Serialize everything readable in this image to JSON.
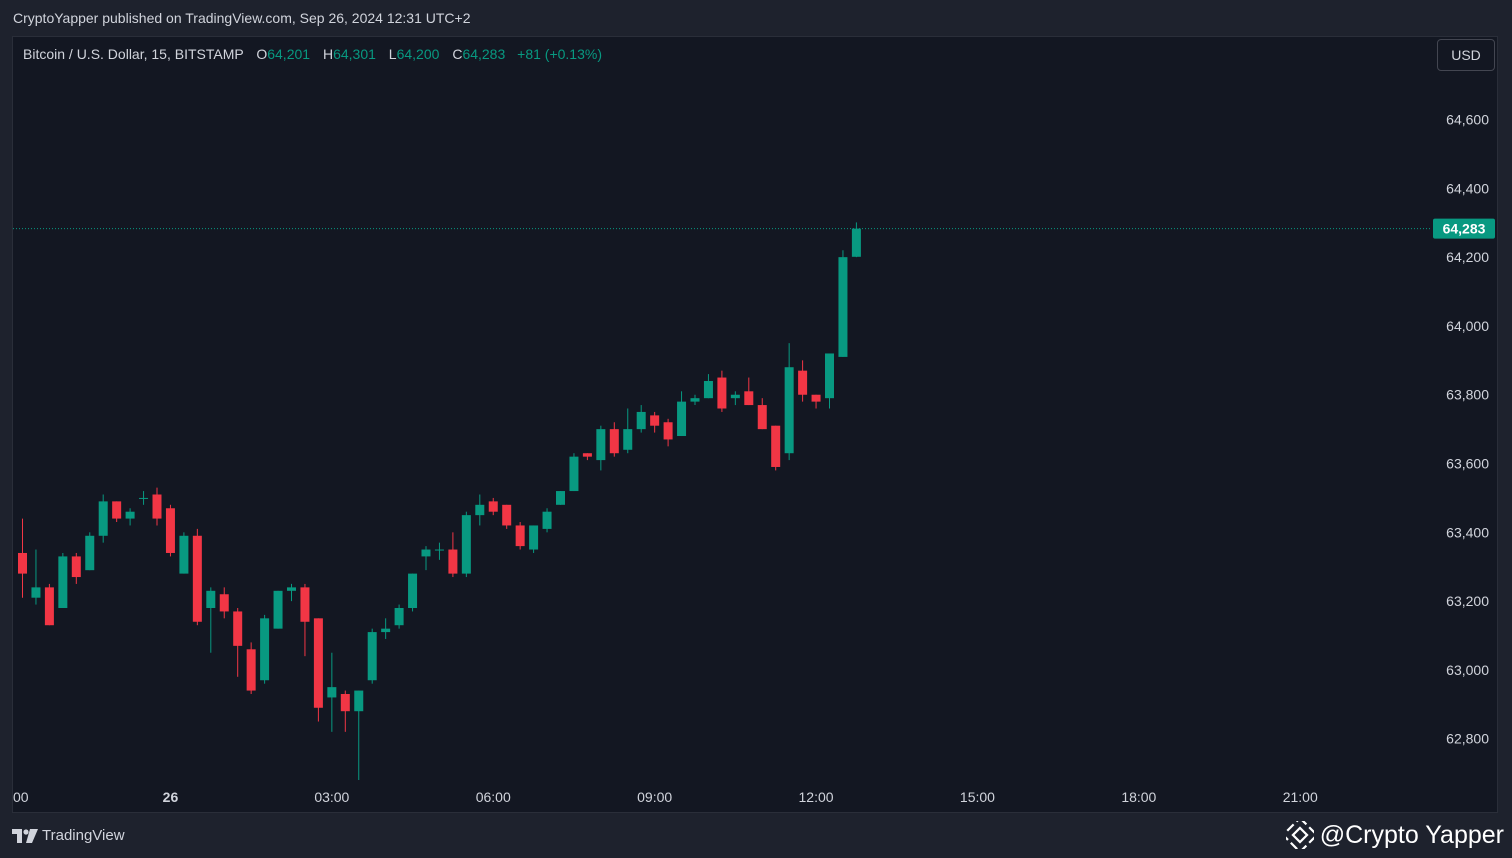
{
  "header": {
    "published_by": "CryptoYapper published on TradingView.com, Sep 26, 2024 12:31 UTC+2"
  },
  "legend": {
    "symbol": "Bitcoin / U.S. Dollar, 15, BITSTAMP",
    "o_label": "O",
    "o_value": "64,201",
    "h_label": "H",
    "h_value": "64,301",
    "l_label": "L",
    "l_value": "64,200",
    "c_label": "C",
    "c_value": "64,283",
    "change": "+81 (+0.13%)"
  },
  "toolbar": {
    "currency_label": "USD"
  },
  "footer": {
    "brand": "TradingView"
  },
  "watermark": {
    "text": "@Crypto Yapper"
  },
  "colors": {
    "up": "#089981",
    "down": "#f23645",
    "background": "#131722",
    "text": "#d1d4dc"
  },
  "chart_data": {
    "type": "candlestick",
    "interval": "15",
    "ylim": [
      62680,
      64840
    ],
    "last_price": 64283,
    "last_price_label": "64,283",
    "y_ticks": [
      {
        "value": 64600,
        "label": "64,600"
      },
      {
        "value": 64400,
        "label": "64,400"
      },
      {
        "value": 64200,
        "label": "64,200"
      },
      {
        "value": 64000,
        "label": "64,000"
      },
      {
        "value": 63800,
        "label": "63,800"
      },
      {
        "value": 63600,
        "label": "63,600"
      },
      {
        "value": 63400,
        "label": "63,400"
      },
      {
        "value": 63200,
        "label": "63,200"
      },
      {
        "value": 63000,
        "label": "63,000"
      },
      {
        "value": 62800,
        "label": "62,800"
      }
    ],
    "x_ticks": [
      {
        "index": -1,
        "label": "00"
      },
      {
        "index": 11,
        "label": "26"
      },
      {
        "index": 23,
        "label": "03:00"
      },
      {
        "index": 35,
        "label": "06:00"
      },
      {
        "index": 47,
        "label": "09:00"
      },
      {
        "index": 59,
        "label": "12:00"
      },
      {
        "index": 71,
        "label": "15:00"
      },
      {
        "index": 83,
        "label": "18:00"
      },
      {
        "index": 95,
        "label": "21:00"
      }
    ],
    "candles": [
      {
        "o": 63340,
        "h": 63440,
        "l": 63210,
        "c": 63280
      },
      {
        "o": 63210,
        "h": 63350,
        "l": 63190,
        "c": 63240
      },
      {
        "o": 63240,
        "h": 63250,
        "l": 63130,
        "c": 63130
      },
      {
        "o": 63180,
        "h": 63340,
        "l": 63180,
        "c": 63330
      },
      {
        "o": 63330,
        "h": 63340,
        "l": 63250,
        "c": 63270
      },
      {
        "o": 63290,
        "h": 63400,
        "l": 63290,
        "c": 63390
      },
      {
        "o": 63390,
        "h": 63510,
        "l": 63370,
        "c": 63490
      },
      {
        "o": 63490,
        "h": 63490,
        "l": 63430,
        "c": 63440
      },
      {
        "o": 63440,
        "h": 63470,
        "l": 63420,
        "c": 63460
      },
      {
        "o": 63500,
        "h": 63520,
        "l": 63480,
        "c": 63500
      },
      {
        "o": 63510,
        "h": 63530,
        "l": 63420,
        "c": 63440
      },
      {
        "o": 63470,
        "h": 63480,
        "l": 63330,
        "c": 63340
      },
      {
        "o": 63280,
        "h": 63400,
        "l": 63280,
        "c": 63390
      },
      {
        "o": 63390,
        "h": 63410,
        "l": 63130,
        "c": 63140
      },
      {
        "o": 63180,
        "h": 63240,
        "l": 63050,
        "c": 63230
      },
      {
        "o": 63220,
        "h": 63240,
        "l": 63150,
        "c": 63170
      },
      {
        "o": 63170,
        "h": 63180,
        "l": 62980,
        "c": 63070
      },
      {
        "o": 63060,
        "h": 63080,
        "l": 62930,
        "c": 62940
      },
      {
        "o": 62970,
        "h": 63160,
        "l": 62960,
        "c": 63150
      },
      {
        "o": 63120,
        "h": 63230,
        "l": 63120,
        "c": 63230
      },
      {
        "o": 63230,
        "h": 63250,
        "l": 63200,
        "c": 63240
      },
      {
        "o": 63240,
        "h": 63250,
        "l": 63040,
        "c": 63140
      },
      {
        "o": 63150,
        "h": 63150,
        "l": 62850,
        "c": 62890
      },
      {
        "o": 62920,
        "h": 63050,
        "l": 62820,
        "c": 62950
      },
      {
        "o": 62930,
        "h": 62940,
        "l": 62820,
        "c": 62880
      },
      {
        "o": 62880,
        "h": 62940,
        "l": 62680,
        "c": 62940
      },
      {
        "o": 62970,
        "h": 63120,
        "l": 62960,
        "c": 63110
      },
      {
        "o": 63110,
        "h": 63150,
        "l": 63090,
        "c": 63120
      },
      {
        "o": 63130,
        "h": 63190,
        "l": 63120,
        "c": 63180
      },
      {
        "o": 63180,
        "h": 63280,
        "l": 63170,
        "c": 63280
      },
      {
        "o": 63330,
        "h": 63360,
        "l": 63290,
        "c": 63350
      },
      {
        "o": 63350,
        "h": 63370,
        "l": 63320,
        "c": 63350
      },
      {
        "o": 63350,
        "h": 63400,
        "l": 63270,
        "c": 63280
      },
      {
        "o": 63280,
        "h": 63460,
        "l": 63270,
        "c": 63450
      },
      {
        "o": 63450,
        "h": 63510,
        "l": 63420,
        "c": 63480
      },
      {
        "o": 63490,
        "h": 63500,
        "l": 63450,
        "c": 63460
      },
      {
        "o": 63480,
        "h": 63480,
        "l": 63410,
        "c": 63420
      },
      {
        "o": 63420,
        "h": 63430,
        "l": 63350,
        "c": 63360
      },
      {
        "o": 63350,
        "h": 63420,
        "l": 63340,
        "c": 63420
      },
      {
        "o": 63410,
        "h": 63470,
        "l": 63400,
        "c": 63460
      },
      {
        "o": 63480,
        "h": 63520,
        "l": 63480,
        "c": 63520
      },
      {
        "o": 63520,
        "h": 63630,
        "l": 63520,
        "c": 63620
      },
      {
        "o": 63630,
        "h": 63630,
        "l": 63610,
        "c": 63620
      },
      {
        "o": 63610,
        "h": 63710,
        "l": 63580,
        "c": 63700
      },
      {
        "o": 63700,
        "h": 63720,
        "l": 63620,
        "c": 63630
      },
      {
        "o": 63640,
        "h": 63760,
        "l": 63630,
        "c": 63700
      },
      {
        "o": 63700,
        "h": 63770,
        "l": 63690,
        "c": 63750
      },
      {
        "o": 63740,
        "h": 63750,
        "l": 63690,
        "c": 63710
      },
      {
        "o": 63720,
        "h": 63730,
        "l": 63650,
        "c": 63670
      },
      {
        "o": 63680,
        "h": 63810,
        "l": 63680,
        "c": 63780
      },
      {
        "o": 63780,
        "h": 63800,
        "l": 63770,
        "c": 63790
      },
      {
        "o": 63790,
        "h": 63860,
        "l": 63790,
        "c": 63840
      },
      {
        "o": 63850,
        "h": 63870,
        "l": 63750,
        "c": 63760
      },
      {
        "o": 63790,
        "h": 63810,
        "l": 63770,
        "c": 63800
      },
      {
        "o": 63810,
        "h": 63850,
        "l": 63770,
        "c": 63770
      },
      {
        "o": 63770,
        "h": 63790,
        "l": 63700,
        "c": 63700
      },
      {
        "o": 63710,
        "h": 63710,
        "l": 63580,
        "c": 63590
      },
      {
        "o": 63630,
        "h": 63950,
        "l": 63610,
        "c": 63880
      },
      {
        "o": 63870,
        "h": 63900,
        "l": 63780,
        "c": 63800
      },
      {
        "o": 63800,
        "h": 63800,
        "l": 63760,
        "c": 63780
      },
      {
        "o": 63790,
        "h": 63920,
        "l": 63760,
        "c": 63920
      },
      {
        "o": 63910,
        "h": 64220,
        "l": 63910,
        "c": 64200
      },
      {
        "o": 64201,
        "h": 64301,
        "l": 64200,
        "c": 64283
      }
    ]
  }
}
